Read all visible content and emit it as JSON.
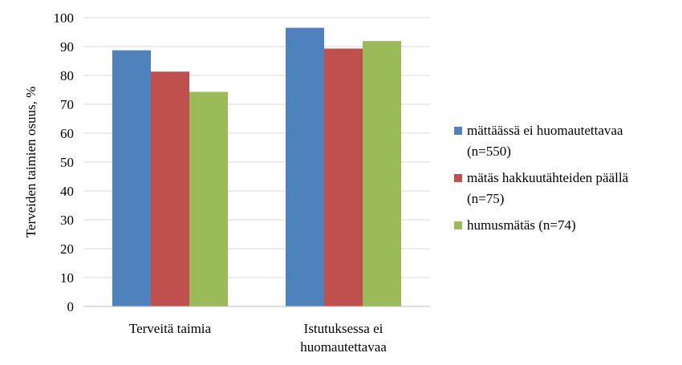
{
  "chart_data": {
    "type": "bar",
    "title": "",
    "xlabel": "",
    "ylabel": "Terveiden taimien osuus, %",
    "ylim": [
      0,
      100
    ],
    "yticks": [
      0,
      10,
      20,
      30,
      40,
      50,
      60,
      70,
      80,
      90,
      100
    ],
    "grid": true,
    "legend_position": "right",
    "categories": [
      [
        "Terveitä taimia"
      ],
      [
        "Istutuksessa ei",
        "huomautettavaa"
      ]
    ],
    "series": [
      {
        "name": [
          "mättäässä ei huomautettavaa",
          "(n=550)"
        ],
        "color": "#4F81BD",
        "values": [
          88.7,
          96.5
        ]
      },
      {
        "name": [
          "mätäs hakkuutähteiden päällä",
          "(n=75)"
        ],
        "color": "#C0504D",
        "values": [
          81.3,
          89.3
        ]
      },
      {
        "name": [
          "humusmätäs (n=74)"
        ],
        "color": "#9BBB59",
        "values": [
          74.3,
          91.9
        ]
      }
    ]
  }
}
